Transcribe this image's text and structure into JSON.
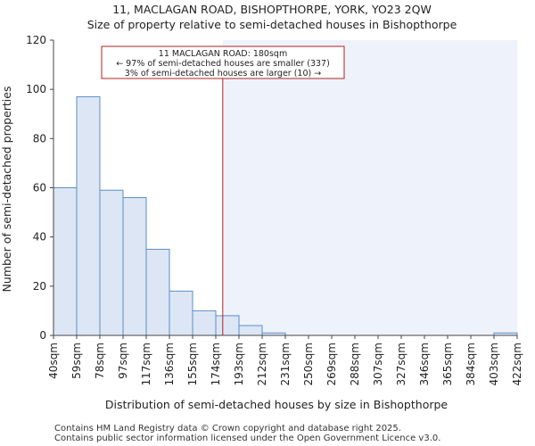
{
  "chart_data": {
    "type": "bar",
    "title": "11, MACLAGAN ROAD, BISHOPTHORPE, YORK, YO23 2QW",
    "subtitle": "Size of property relative to semi-detached houses in Bishopthorpe",
    "xlabel": "Distribution of semi-detached houses by size in Bishopthorpe",
    "ylabel": "Number of semi-detached properties",
    "ylim": [
      0,
      120
    ],
    "yticks": [
      0,
      20,
      40,
      60,
      80,
      100,
      120
    ],
    "bin_edges": [
      "40sqm",
      "59sqm",
      "78sqm",
      "97sqm",
      "117sqm",
      "136sqm",
      "155sqm",
      "174sqm",
      "193sqm",
      "212sqm",
      "231sqm",
      "250sqm",
      "269sqm",
      "288sqm",
      "307sqm",
      "327sqm",
      "346sqm",
      "365sqm",
      "384sqm",
      "403sqm",
      "422sqm"
    ],
    "values": [
      60,
      97,
      59,
      56,
      35,
      18,
      10,
      8,
      4,
      1,
      0,
      0,
      0,
      0,
      0,
      0,
      0,
      0,
      0,
      1
    ],
    "marker_value_sqm": 180,
    "marker_bin_position": 7.3,
    "annotation": {
      "line1": "11 MACLAGAN ROAD: 180sqm",
      "line2": "← 97% of semi-detached houses are smaller (337)",
      "line3": "3% of semi-detached houses are larger (10) →"
    },
    "colors": {
      "bar_fill": "#dce6f5",
      "bar_stroke": "#5b8fc7",
      "marker": "#b22222",
      "shade": "#eef2fb"
    }
  },
  "footer": {
    "line1": "Contains HM Land Registry data © Crown copyright and database right 2025.",
    "line2": "Contains public sector information licensed under the Open Government Licence v3.0."
  }
}
